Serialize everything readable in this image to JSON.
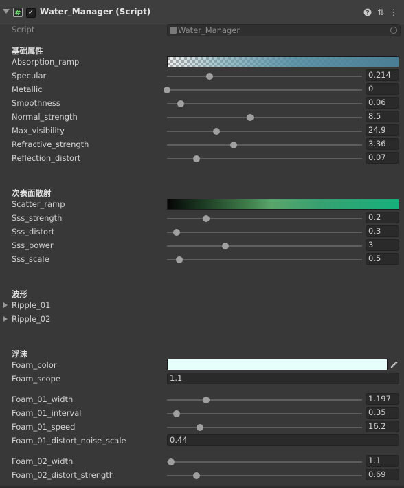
{
  "header": {
    "title": "Water_Manager (Script)",
    "enabled_check": "✓",
    "help_glyph": "?",
    "preset_glyph": "⇅",
    "menu_glyph": "⋮"
  },
  "script_row": {
    "label": "Script",
    "value": "Water_Manager"
  },
  "sections": {
    "basic": "基础属性",
    "subsurface": "次表面散射",
    "waves": "波形",
    "foam": "浮沫"
  },
  "labels": {
    "absorption_ramp": "Absorption_ramp",
    "specular": "Specular",
    "metallic": "Metallic",
    "smoothness": "Smoothness",
    "normal_strength": "Normal_strength",
    "max_visibility": "Max_visibility",
    "refractive_strength": "Refractive_strength",
    "reflection_distort": "Reflection_distort",
    "scatter_ramp": "Scatter_ramp",
    "sss_strength": "Sss_strength",
    "sss_distort": "Sss_distort",
    "sss_power": "Sss_power",
    "sss_scale": "Sss_scale",
    "ripple_01": "Ripple_01",
    "ripple_02": "Ripple_02",
    "foam_color": "Foam_color",
    "foam_scope": "Foam_scope",
    "foam_01_width": "Foam_01_width",
    "foam_01_interval": "Foam_01_interval",
    "foam_01_speed": "Foam_01_speed",
    "foam_01_distort_noise_scale": "Foam_01_distort_noise_scale",
    "foam_02_width": "Foam_02_width",
    "foam_02_distort_strength": "Foam_02_distort_strength"
  },
  "values": {
    "specular": "0.214",
    "metallic": "0",
    "smoothness": "0.06",
    "normal_strength": "8.5",
    "max_visibility": "24.9",
    "refractive_strength": "3.36",
    "reflection_distort": "0.07",
    "sss_strength": "0.2",
    "sss_distort": "0.3",
    "sss_power": "3",
    "sss_scale": "0.5",
    "foam_scope": "1.1",
    "foam_01_width": "1.197",
    "foam_01_interval": "0.35",
    "foam_01_speed": "16.2",
    "foam_01_distort_noise_scale": "0.44",
    "foam_02_width": "1.1",
    "foam_02_distort_strength": "0.69"
  },
  "slider_positions": {
    "specular": 0.22,
    "metallic": 0.0,
    "smoothness": 0.07,
    "normal_strength": 0.425,
    "max_visibility": 0.255,
    "refractive_strength": 0.34,
    "reflection_distort": 0.15,
    "sss_strength": 0.2,
    "sss_distort": 0.05,
    "sss_power": 0.3,
    "sss_scale": 0.065,
    "foam_01_width": 0.2,
    "foam_01_interval": 0.05,
    "foam_01_speed": 0.17,
    "foam_02_width": 0.02,
    "foam_02_distort_strength": 0.15
  },
  "colors": {
    "foam_color": "#e6fffb",
    "background": "#383838",
    "script_icon": "#6fd36f"
  },
  "icons": {
    "script": "script-hash-icon",
    "picker": "eyedropper-icon"
  }
}
